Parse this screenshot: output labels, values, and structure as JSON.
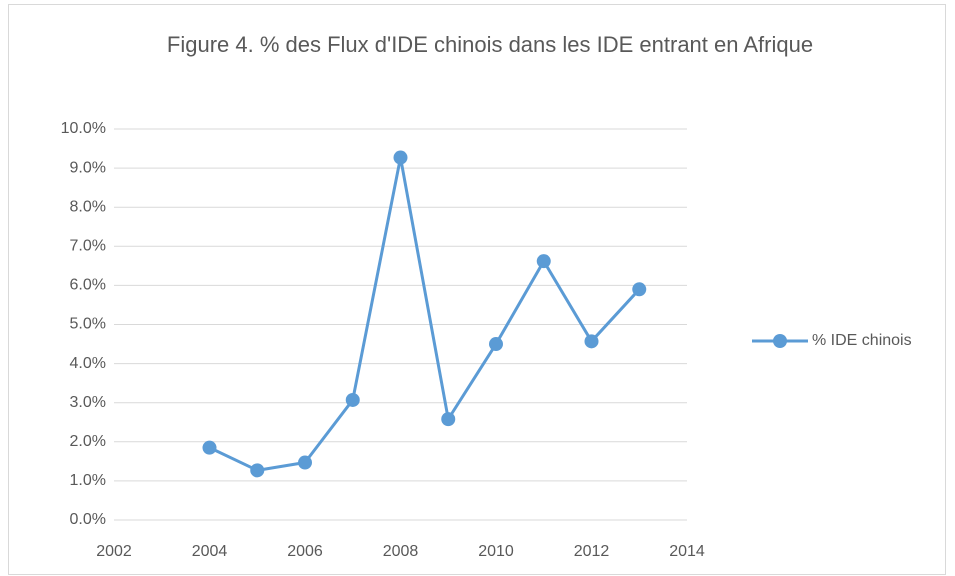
{
  "chart_data": {
    "type": "line",
    "title": "Figure 4. % des Flux d'IDE chinois dans les IDE entrant en Afrique",
    "x": [
      2004,
      2005,
      2006,
      2007,
      2008,
      2009,
      2010,
      2011,
      2012,
      2013
    ],
    "series": [
      {
        "name": "% IDE chinois",
        "color": "#5b9bd5",
        "values": [
          1.85,
          1.27,
          1.47,
          3.07,
          9.27,
          2.58,
          4.5,
          6.62,
          4.57,
          5.9
        ]
      }
    ],
    "xlim": [
      2002,
      2014
    ],
    "xticks": [
      2002,
      2004,
      2006,
      2008,
      2010,
      2012,
      2014
    ],
    "ylim": [
      0,
      10
    ],
    "yticks": [
      {
        "value": 0,
        "label": "0.0%"
      },
      {
        "value": 1,
        "label": "1.0%"
      },
      {
        "value": 2,
        "label": "2.0%"
      },
      {
        "value": 3,
        "label": "3.0%"
      },
      {
        "value": 4,
        "label": "4.0%"
      },
      {
        "value": 5,
        "label": "5.0%"
      },
      {
        "value": 6,
        "label": "6.0%"
      },
      {
        "value": 7,
        "label": "7.0%"
      },
      {
        "value": 8,
        "label": "8.0%"
      },
      {
        "value": 9,
        "label": "9.0%"
      },
      {
        "value": 10,
        "label": "10.0%"
      }
    ],
    "grid": true,
    "legend": "right"
  }
}
